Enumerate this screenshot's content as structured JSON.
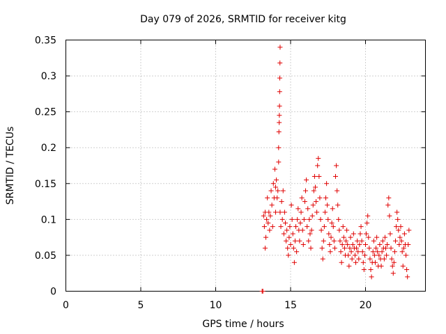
{
  "chart_data": {
    "type": "scatter",
    "title": "Day 079 of 2026, SRMTID for receiver kitg",
    "xlabel": "GPS time / hours",
    "ylabel": "SRMTID / TECUs",
    "xlim": [
      0,
      24
    ],
    "ylim": [
      0,
      0.35
    ],
    "xticks": [
      0,
      5,
      10,
      15,
      20
    ],
    "xtick_labels": [
      "0",
      "5",
      "10",
      "15",
      "20"
    ],
    "yticks": [
      0,
      0.05,
      0.1,
      0.15,
      0.2,
      0.25,
      0.3,
      0.35
    ],
    "ytick_labels": [
      "0",
      "0.05",
      "0.1",
      "0.15",
      "0.2",
      "0.25",
      "0.3",
      "0.35"
    ],
    "grid": true,
    "legend": "none",
    "marker": "+",
    "series": [
      {
        "name": "SRMTID",
        "color": "#e00000",
        "points": [
          [
            13.1,
            0.0
          ],
          [
            13.15,
            0.0
          ],
          [
            13.2,
            0.105
          ],
          [
            13.25,
            0.09
          ],
          [
            13.3,
            0.06
          ],
          [
            13.3,
            0.11
          ],
          [
            13.35,
            0.075
          ],
          [
            13.4,
            0.1
          ],
          [
            13.45,
            0.13
          ],
          [
            13.5,
            0.095
          ],
          [
            13.55,
            0.11
          ],
          [
            13.6,
            0.085
          ],
          [
            13.65,
            0.105
          ],
          [
            13.7,
            0.14
          ],
          [
            13.75,
            0.12
          ],
          [
            13.8,
            0.09
          ],
          [
            13.85,
            0.15
          ],
          [
            13.9,
            0.13
          ],
          [
            13.95,
            0.17
          ],
          [
            14.0,
            0.145
          ],
          [
            14.0,
            0.11
          ],
          [
            14.05,
            0.155
          ],
          [
            14.1,
            0.13
          ],
          [
            14.15,
            0.14
          ],
          [
            14.2,
            0.18
          ],
          [
            14.2,
            0.2
          ],
          [
            14.22,
            0.222
          ],
          [
            14.24,
            0.235
          ],
          [
            14.25,
            0.245
          ],
          [
            14.26,
            0.258
          ],
          [
            14.27,
            0.278
          ],
          [
            14.28,
            0.297
          ],
          [
            14.29,
            0.318
          ],
          [
            14.3,
            0.34
          ],
          [
            14.3,
            0.11
          ],
          [
            14.35,
            0.09
          ],
          [
            14.4,
            0.125
          ],
          [
            14.45,
            0.1
          ],
          [
            14.5,
            0.14
          ],
          [
            14.55,
            0.08
          ],
          [
            14.6,
            0.11
          ],
          [
            14.65,
            0.095
          ],
          [
            14.7,
            0.07
          ],
          [
            14.75,
            0.085
          ],
          [
            14.8,
            0.06
          ],
          [
            14.85,
            0.05
          ],
          [
            14.9,
            0.075
          ],
          [
            14.95,
            0.09
          ],
          [
            15.0,
            0.065
          ],
          [
            15.05,
            0.12
          ],
          [
            15.1,
            0.1
          ],
          [
            15.15,
            0.08
          ],
          [
            15.2,
            0.06
          ],
          [
            15.25,
            0.04
          ],
          [
            15.3,
            0.07
          ],
          [
            15.35,
            0.09
          ],
          [
            15.4,
            0.055
          ],
          [
            15.45,
            0.1
          ],
          [
            15.5,
            0.115
          ],
          [
            15.55,
            0.085
          ],
          [
            15.6,
            0.07
          ],
          [
            15.65,
            0.095
          ],
          [
            15.7,
            0.11
          ],
          [
            15.75,
            0.13
          ],
          [
            15.8,
            0.085
          ],
          [
            15.85,
            0.065
          ],
          [
            15.9,
            0.1
          ],
          [
            15.95,
            0.125
          ],
          [
            16.0,
            0.14
          ],
          [
            16.05,
            0.155
          ],
          [
            16.1,
            0.09
          ],
          [
            16.15,
            0.115
          ],
          [
            16.2,
            0.07
          ],
          [
            16.25,
            0.1
          ],
          [
            16.3,
            0.08
          ],
          [
            16.35,
            0.06
          ],
          [
            16.4,
            0.085
          ],
          [
            16.45,
            0.105
          ],
          [
            16.5,
            0.12
          ],
          [
            16.55,
            0.14
          ],
          [
            16.6,
            0.16
          ],
          [
            16.65,
            0.145
          ],
          [
            16.7,
            0.125
          ],
          [
            16.75,
            0.11
          ],
          [
            16.8,
            0.175
          ],
          [
            16.85,
            0.185
          ],
          [
            16.9,
            0.16
          ],
          [
            16.95,
            0.13
          ],
          [
            17.0,
            0.1
          ],
          [
            17.05,
            0.085
          ],
          [
            17.1,
            0.06
          ],
          [
            17.15,
            0.045
          ],
          [
            17.2,
            0.07
          ],
          [
            17.25,
            0.09
          ],
          [
            17.3,
            0.11
          ],
          [
            17.35,
            0.13
          ],
          [
            17.4,
            0.15
          ],
          [
            17.45,
            0.12
          ],
          [
            17.5,
            0.1
          ],
          [
            17.55,
            0.08
          ],
          [
            17.6,
            0.065
          ],
          [
            17.65,
            0.055
          ],
          [
            17.7,
            0.075
          ],
          [
            17.75,
            0.095
          ],
          [
            17.8,
            0.115
          ],
          [
            17.85,
            0.09
          ],
          [
            17.9,
            0.07
          ],
          [
            17.95,
            0.06
          ],
          [
            18.0,
            0.16
          ],
          [
            18.05,
            0.175
          ],
          [
            18.1,
            0.14
          ],
          [
            18.15,
            0.12
          ],
          [
            18.2,
            0.1
          ],
          [
            18.25,
            0.085
          ],
          [
            18.3,
            0.07
          ],
          [
            18.35,
            0.055
          ],
          [
            18.4,
            0.04
          ],
          [
            18.45,
            0.065
          ],
          [
            18.5,
            0.09
          ],
          [
            18.55,
            0.075
          ],
          [
            18.6,
            0.06
          ],
          [
            18.65,
            0.05
          ],
          [
            18.7,
            0.07
          ],
          [
            18.75,
            0.085
          ],
          [
            18.8,
            0.065
          ],
          [
            18.85,
            0.05
          ],
          [
            18.9,
            0.035
          ],
          [
            18.95,
            0.06
          ],
          [
            19.0,
            0.075
          ],
          [
            19.05,
            0.055
          ],
          [
            19.1,
            0.045
          ],
          [
            19.15,
            0.065
          ],
          [
            19.2,
            0.08
          ],
          [
            19.25,
            0.06
          ],
          [
            19.3,
            0.05
          ],
          [
            19.35,
            0.04
          ],
          [
            19.4,
            0.06
          ],
          [
            19.45,
            0.07
          ],
          [
            19.5,
            0.055
          ],
          [
            19.55,
            0.045
          ],
          [
            19.6,
            0.065
          ],
          [
            19.65,
            0.08
          ],
          [
            19.7,
            0.09
          ],
          [
            19.75,
            0.07
          ],
          [
            19.8,
            0.055
          ],
          [
            19.85,
            0.04
          ],
          [
            19.9,
            0.03
          ],
          [
            19.95,
            0.05
          ],
          [
            20.0,
            0.065
          ],
          [
            20.05,
            0.08
          ],
          [
            20.1,
            0.095
          ],
          [
            20.15,
            0.105
          ],
          [
            20.2,
            0.075
          ],
          [
            20.25,
            0.06
          ],
          [
            20.3,
            0.045
          ],
          [
            20.35,
            0.03
          ],
          [
            20.4,
            0.02
          ],
          [
            20.45,
            0.04
          ],
          [
            20.5,
            0.055
          ],
          [
            20.55,
            0.07
          ],
          [
            20.6,
            0.05
          ],
          [
            20.65,
            0.04
          ],
          [
            20.7,
            0.06
          ],
          [
            20.75,
            0.075
          ],
          [
            20.8,
            0.055
          ],
          [
            20.85,
            0.035
          ],
          [
            20.9,
            0.05
          ],
          [
            20.95,
            0.065
          ],
          [
            21.0,
            0.045
          ],
          [
            21.05,
            0.035
          ],
          [
            21.1,
            0.055
          ],
          [
            21.15,
            0.07
          ],
          [
            21.2,
            0.06
          ],
          [
            21.25,
            0.045
          ],
          [
            21.3,
            0.075
          ],
          [
            21.35,
            0.06
          ],
          [
            21.4,
            0.05
          ],
          [
            21.45,
            0.065
          ],
          [
            21.5,
            0.12
          ],
          [
            21.55,
            0.13
          ],
          [
            21.6,
            0.105
          ],
          [
            21.65,
            0.08
          ],
          [
            21.7,
            0.06
          ],
          [
            21.75,
            0.045
          ],
          [
            21.8,
            0.035
          ],
          [
            21.85,
            0.025
          ],
          [
            21.9,
            0.04
          ],
          [
            21.95,
            0.055
          ],
          [
            22.0,
            0.07
          ],
          [
            22.05,
            0.09
          ],
          [
            22.1,
            0.11
          ],
          [
            22.15,
            0.1
          ],
          [
            22.2,
            0.085
          ],
          [
            22.25,
            0.065
          ],
          [
            22.3,
            0.075
          ],
          [
            22.35,
            0.09
          ],
          [
            22.4,
            0.07
          ],
          [
            22.45,
            0.055
          ],
          [
            22.5,
            0.035
          ],
          [
            22.55,
            0.06
          ],
          [
            22.6,
            0.08
          ],
          [
            22.65,
            0.065
          ],
          [
            22.7,
            0.05
          ],
          [
            22.75,
            0.03
          ],
          [
            22.8,
            0.02
          ],
          [
            22.85,
            0.065
          ],
          [
            22.9,
            0.085
          ]
        ]
      }
    ]
  }
}
